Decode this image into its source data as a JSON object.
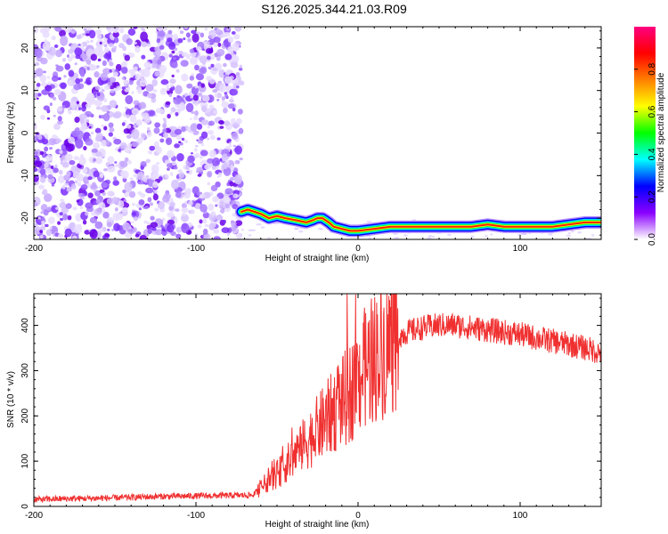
{
  "title": "S126.2025.344.21.03.R09",
  "chart_data": [
    {
      "type": "heatmap",
      "xlabel": "Height of straight line (km)",
      "ylabel": "Frequency (Hz)",
      "xlim": [
        -200,
        150
      ],
      "ylim": [
        -25,
        25
      ],
      "xticks": [
        -200,
        -100,
        0,
        100
      ],
      "xtick_labels": [
        "-200",
        "-100",
        "0",
        "100"
      ],
      "yticks": [
        20,
        10,
        0,
        -10,
        -20
      ],
      "ytick_labels": [
        "20",
        "10",
        "0",
        "-10",
        "-20"
      ],
      "noise_region_x": [
        -200,
        -72
      ],
      "ridge": {
        "x": [
          -72,
          -68,
          -60,
          -55,
          -50,
          -45,
          -38,
          -32,
          -28,
          -25,
          -22,
          -20,
          -18,
          -15,
          -10,
          -5,
          0,
          10,
          20,
          30,
          50,
          70,
          80,
          90,
          100,
          110,
          120,
          130,
          140,
          150
        ],
        "y": [
          -18.5,
          -18,
          -19,
          -20,
          -19.5,
          -20,
          -20.5,
          -21,
          -20.5,
          -20,
          -20,
          -20.5,
          -21,
          -22,
          -22.5,
          -23,
          -23,
          -22.5,
          -22,
          -22,
          -22,
          -22,
          -21.5,
          -22,
          -22,
          -22,
          -22,
          -21.5,
          -21,
          -21
        ]
      },
      "colorbar": {
        "label": "Normalized spectral amplitude",
        "range": [
          0,
          1
        ],
        "ticks": [
          0.0,
          0.2,
          0.4,
          0.6,
          0.8
        ],
        "tick_labels": [
          "0.0",
          "0.2",
          "0.4",
          "0.6",
          "0.8"
        ],
        "colors": [
          "#ffffff",
          "#8a00ff",
          "#0000ff",
          "#00ffff",
          "#00ff00",
          "#ffff00",
          "#ff8000",
          "#ff0000",
          "#ff0080"
        ]
      }
    },
    {
      "type": "line",
      "xlabel": "Height of straight line (km)",
      "ylabel": "SNR (10 * v/v)",
      "xlim": [
        -200,
        150
      ],
      "ylim": [
        0,
        470
      ],
      "xticks": [
        -200,
        -100,
        0,
        100
      ],
      "xtick_labels": [
        "-200",
        "-100",
        "0",
        "100"
      ],
      "yticks": [
        0,
        100,
        200,
        300,
        400
      ],
      "ytick_labels": [
        "0",
        "100",
        "200",
        "300",
        "400"
      ],
      "series": [
        {
          "name": "SNR",
          "color": "#f03030",
          "x": [
            -200,
            -180,
            -160,
            -140,
            -120,
            -100,
            -80,
            -65,
            -60,
            -55,
            -50,
            -45,
            -40,
            -35,
            -30,
            -25,
            -20,
            -15,
            -10,
            -5,
            0,
            5,
            10,
            15,
            20,
            25,
            30,
            40,
            50,
            60,
            70,
            80,
            90,
            100,
            110,
            120,
            130,
            140,
            150
          ],
          "values": [
            15,
            17,
            18,
            20,
            22,
            23,
            24,
            25,
            40,
            60,
            70,
            90,
            110,
            130,
            150,
            170,
            190,
            210,
            230,
            250,
            280,
            310,
            330,
            345,
            360,
            375,
            385,
            395,
            400,
            400,
            395,
            390,
            385,
            380,
            372,
            365,
            358,
            350,
            340
          ]
        }
      ]
    }
  ]
}
